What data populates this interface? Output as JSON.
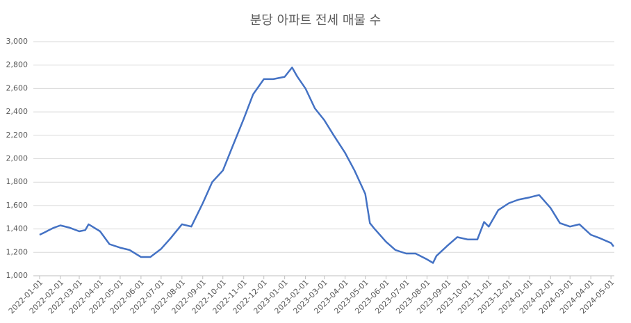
{
  "chart_data": {
    "type": "line",
    "title": "분당 아파트 전세 매물 수",
    "x": [
      "2022-01-01",
      "2022-01-08",
      "2022-01-15",
      "2022-01-22",
      "2022-02-01",
      "2022-02-15",
      "2022-03-01",
      "2022-03-10",
      "2022-03-15",
      "2022-04-01",
      "2022-04-15",
      "2022-05-01",
      "2022-05-15",
      "2022-06-01",
      "2022-06-15",
      "2022-07-01",
      "2022-07-15",
      "2022-08-01",
      "2022-08-15",
      "2022-09-01",
      "2022-09-15",
      "2022-10-01",
      "2022-10-15",
      "2022-11-01",
      "2022-11-15",
      "2022-12-01",
      "2022-12-15",
      "2023-01-01",
      "2023-01-12",
      "2023-01-20",
      "2023-02-01",
      "2023-02-15",
      "2023-03-01",
      "2023-03-15",
      "2023-04-01",
      "2023-04-15",
      "2023-05-01",
      "2023-05-08",
      "2023-05-15",
      "2023-06-01",
      "2023-06-15",
      "2023-07-01",
      "2023-07-15",
      "2023-08-01",
      "2023-08-10",
      "2023-08-15",
      "2023-09-01",
      "2023-09-15",
      "2023-10-01",
      "2023-10-15",
      "2023-10-25",
      "2023-11-01",
      "2023-11-15",
      "2023-12-01",
      "2023-12-15",
      "2024-01-01",
      "2024-01-15",
      "2024-02-01",
      "2024-02-15",
      "2024-03-01",
      "2024-03-15",
      "2024-04-01",
      "2024-04-15",
      "2024-05-01",
      "2024-05-05"
    ],
    "series": [
      {
        "name": "매물 수",
        "color": "#4472c4",
        "values": [
          1350,
          1370,
          1390,
          1410,
          1430,
          1410,
          1380,
          1390,
          1440,
          1380,
          1270,
          1240,
          1220,
          1160,
          1160,
          1230,
          1320,
          1440,
          1420,
          1620,
          1800,
          1900,
          2100,
          2340,
          2550,
          2680,
          2680,
          2700,
          2780,
          2700,
          2600,
          2430,
          2330,
          2200,
          2050,
          1900,
          1700,
          1450,
          1400,
          1290,
          1220,
          1190,
          1190,
          1140,
          1110,
          1170,
          1260,
          1330,
          1310,
          1310,
          1460,
          1420,
          1560,
          1620,
          1650,
          1670,
          1690,
          1580,
          1450,
          1420,
          1440,
          1350,
          1320,
          1280,
          1250
        ]
      }
    ],
    "xlim": [
      "2022-01-01",
      "2024-05-06"
    ],
    "xticks": [
      "2022-01-01",
      "2022-02-01",
      "2022-03-01",
      "2022-04-01",
      "2022-05-01",
      "2022-06-01",
      "2022-07-01",
      "2022-08-01",
      "2022-09-01",
      "2022-10-01",
      "2022-11-01",
      "2022-12-01",
      "2023-01-01",
      "2023-02-01",
      "2023-03-01",
      "2023-04-01",
      "2023-05-01",
      "2023-06-01",
      "2023-07-01",
      "2023-08-01",
      "2023-09-01",
      "2023-10-01",
      "2023-11-01",
      "2023-12-01",
      "2024-01-01",
      "2024-02-01",
      "2024-03-01",
      "2024-04-01",
      "2024-05-01"
    ],
    "ylim": [
      1000,
      3000
    ],
    "yticks": [
      {
        "value": 1000,
        "label": "1,000"
      },
      {
        "value": 1200,
        "label": "1,200"
      },
      {
        "value": 1400,
        "label": "1,400"
      },
      {
        "value": 1600,
        "label": "1,600"
      },
      {
        "value": 1800,
        "label": "1,800"
      },
      {
        "value": 2000,
        "label": "2,000"
      },
      {
        "value": 2200,
        "label": "2,200"
      },
      {
        "value": 2400,
        "label": "2,400"
      },
      {
        "value": 2600,
        "label": "2,600"
      },
      {
        "value": 2800,
        "label": "2,800"
      },
      {
        "value": 3000,
        "label": "3,000"
      }
    ],
    "grid": true
  }
}
